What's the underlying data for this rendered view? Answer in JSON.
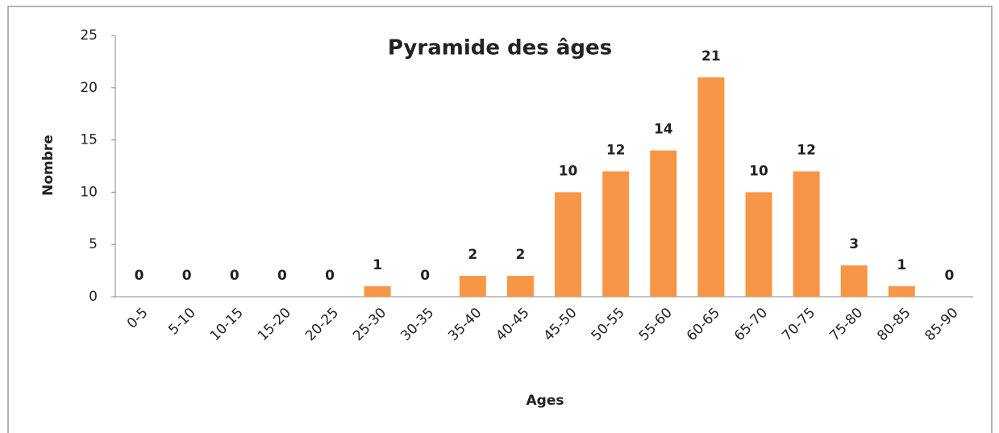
{
  "chart_data": {
    "type": "bar",
    "title": "Pyramide des âges",
    "x_label": "Ages",
    "y_label": "Nombre",
    "categories": [
      "0-5",
      "5-10",
      "10-15",
      "15-20",
      "20-25",
      "25-30",
      "30-35",
      "35-40",
      "40-45",
      "45-50",
      "50-55",
      "55-60",
      "60-65",
      "65-70",
      "70-75",
      "75-80",
      "80-85",
      "85-90"
    ],
    "values": [
      0,
      0,
      0,
      0,
      0,
      1,
      0,
      2,
      2,
      10,
      12,
      14,
      21,
      10,
      12,
      3,
      1,
      0
    ],
    "color": "#f79646",
    "ylim": [
      0,
      25
    ],
    "yticks": [
      0,
      5,
      10,
      15,
      20,
      25
    ],
    "grid": false
  }
}
